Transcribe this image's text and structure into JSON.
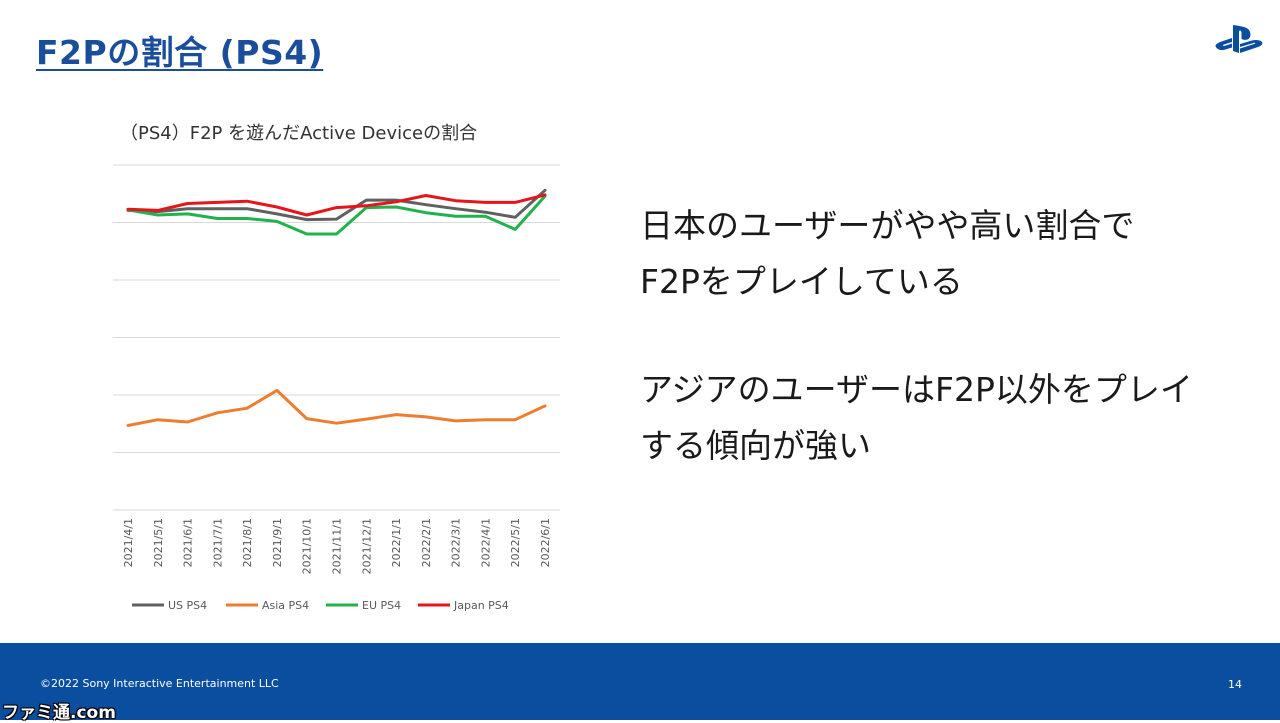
{
  "slide": {
    "title": "F2Pの割合 (PS4)",
    "points": [
      [
        "日本のユーザーがやや高い割合で",
        "F2Pをプレイしている"
      ],
      [
        "アジアのユーザーはF2P以外をプレイ",
        "する傾向が強い"
      ]
    ]
  },
  "footer": {
    "copyright": "©2022 Sony Interactive Entertainment LLC",
    "page_number": "14",
    "watermark": "ファミ通.com"
  },
  "colors": {
    "title": "#1a4e9c",
    "footer_bg": "#0a4ea0",
    "us": "#606060",
    "asia": "#ed7d31",
    "eu": "#22b14c",
    "japan": "#e8141b"
  },
  "chart_data": {
    "type": "line",
    "title": "（PS4）F2P を遊んだActive Deviceの割合",
    "xlabel": "",
    "ylabel": "",
    "y_tick_labels_shown": false,
    "grid": true,
    "legend": "bottom",
    "ylim": [
      0,
      6
    ],
    "categories": [
      "2021/4/1",
      "2021/5/1",
      "2021/6/1",
      "2021/7/1",
      "2021/8/1",
      "2021/9/1",
      "2021/10/1",
      "2021/11/1",
      "2021/12/1",
      "2022/1/1",
      "2022/2/1",
      "2022/3/1",
      "2022/4/1",
      "2022/5/1",
      "2022/6/1"
    ],
    "series": [
      {
        "name": "US PS4",
        "color": "#606060",
        "values": [
          5.21,
          5.19,
          5.24,
          5.24,
          5.24,
          5.15,
          5.05,
          5.06,
          5.39,
          5.39,
          5.31,
          5.24,
          5.18,
          5.09,
          5.56
        ]
      },
      {
        "name": "Asia PS4",
        "color": "#ed7d31",
        "values": [
          1.47,
          1.57,
          1.53,
          1.69,
          1.77,
          2.08,
          1.59,
          1.51,
          1.58,
          1.66,
          1.62,
          1.55,
          1.57,
          1.57,
          1.81
        ]
      },
      {
        "name": "EU PS4",
        "color": "#22b14c",
        "values": [
          5.22,
          5.13,
          5.15,
          5.07,
          5.07,
          5.02,
          4.8,
          4.8,
          5.26,
          5.27,
          5.17,
          5.11,
          5.11,
          4.88,
          5.46
        ]
      },
      {
        "name": "Japan PS4",
        "color": "#e8141b",
        "values": [
          5.23,
          5.21,
          5.33,
          5.35,
          5.37,
          5.27,
          5.13,
          5.26,
          5.29,
          5.36,
          5.47,
          5.38,
          5.35,
          5.35,
          5.48
        ]
      }
    ]
  }
}
